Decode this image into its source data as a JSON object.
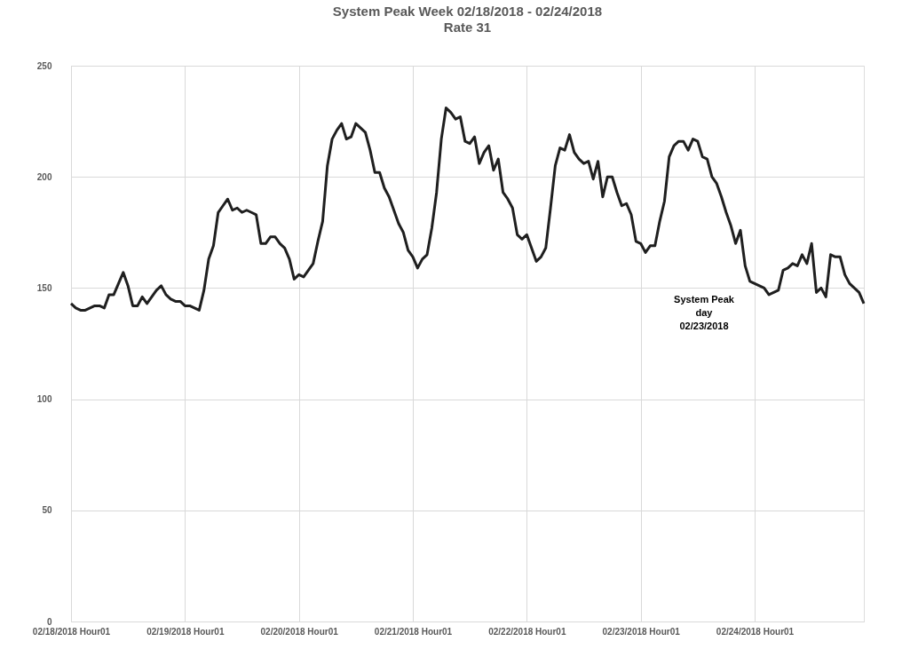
{
  "chart_data": {
    "type": "line",
    "title": "System Peak Week 02/18/2018 - 02/24/2018",
    "subtitle": "Rate 31",
    "categories": [
      "02/18/2018 Hour01",
      null,
      null,
      null,
      null,
      null,
      null,
      null,
      null,
      null,
      null,
      null,
      null,
      null,
      null,
      null,
      null,
      null,
      null,
      null,
      null,
      null,
      null,
      null,
      "02/19/2018 Hour01",
      null,
      null,
      null,
      null,
      null,
      null,
      null,
      null,
      null,
      null,
      null,
      null,
      null,
      null,
      null,
      null,
      null,
      null,
      null,
      null,
      null,
      null,
      null,
      "02/20/2018 Hour01",
      null,
      null,
      null,
      null,
      null,
      null,
      null,
      null,
      null,
      null,
      null,
      null,
      null,
      null,
      null,
      null,
      null,
      null,
      null,
      null,
      null,
      null,
      null,
      "02/21/2018 Hour01",
      null,
      null,
      null,
      null,
      null,
      null,
      null,
      null,
      null,
      null,
      null,
      null,
      null,
      null,
      null,
      null,
      null,
      null,
      null,
      null,
      null,
      null,
      null,
      "02/22/2018 Hour01",
      null,
      null,
      null,
      null,
      null,
      null,
      null,
      null,
      null,
      null,
      null,
      null,
      null,
      null,
      null,
      null,
      null,
      null,
      null,
      null,
      null,
      null,
      null,
      "02/23/2018 Hour01",
      null,
      null,
      null,
      null,
      null,
      null,
      null,
      null,
      null,
      null,
      null,
      null,
      null,
      null,
      null,
      null,
      null,
      null,
      null,
      null,
      null,
      null,
      null,
      "02/24/2018 Hour01",
      null,
      null,
      null,
      null,
      null,
      null,
      null,
      null,
      null,
      null,
      null,
      null,
      null,
      null,
      null,
      null,
      null,
      null,
      null,
      null,
      null,
      null,
      null
    ],
    "series": [
      {
        "color": "#1f1f1f",
        "values": [
          143,
          141,
          140,
          140,
          141,
          142,
          142,
          141,
          147,
          147,
          152,
          157,
          151,
          142,
          142,
          146,
          143,
          146,
          149,
          151,
          147,
          145,
          144,
          144,
          142,
          142,
          141,
          140,
          149,
          163,
          169,
          184,
          187,
          190,
          185,
          186,
          184,
          185,
          184,
          183,
          170,
          170,
          173,
          173,
          170,
          168,
          163,
          154,
          156,
          155,
          158,
          161,
          171,
          180,
          205,
          217,
          221,
          224,
          217,
          218,
          224,
          222,
          220,
          212,
          202,
          202,
          195,
          191,
          185,
          179,
          175,
          167,
          164,
          159,
          163,
          165,
          177,
          193,
          217,
          231,
          229,
          226,
          227,
          216,
          215,
          218,
          206,
          211,
          214,
          203,
          208,
          193,
          190,
          186,
          174,
          172,
          174,
          168,
          162,
          164,
          168,
          186,
          205,
          213,
          212,
          219,
          211,
          208,
          206,
          207,
          199,
          207,
          191,
          200,
          200,
          193,
          187,
          188,
          183,
          171,
          170,
          166,
          169,
          169,
          180,
          189,
          209,
          214,
          216,
          216,
          212,
          217,
          216,
          209,
          208,
          200,
          197,
          191,
          184,
          178,
          170,
          176,
          160,
          153,
          152,
          151,
          150,
          147,
          148,
          149,
          158,
          159,
          161,
          160,
          165,
          161,
          170,
          148,
          150,
          146,
          165,
          164,
          164,
          156,
          152,
          150,
          148,
          143
        ]
      }
    ],
    "ylim": [
      0,
      250
    ],
    "yticks": [
      0,
      50,
      100,
      150,
      200,
      250
    ],
    "grid": true,
    "marker": "none",
    "line_style": "solid",
    "annotations": [
      "System Peak\nday\n02/23/2018"
    ]
  }
}
